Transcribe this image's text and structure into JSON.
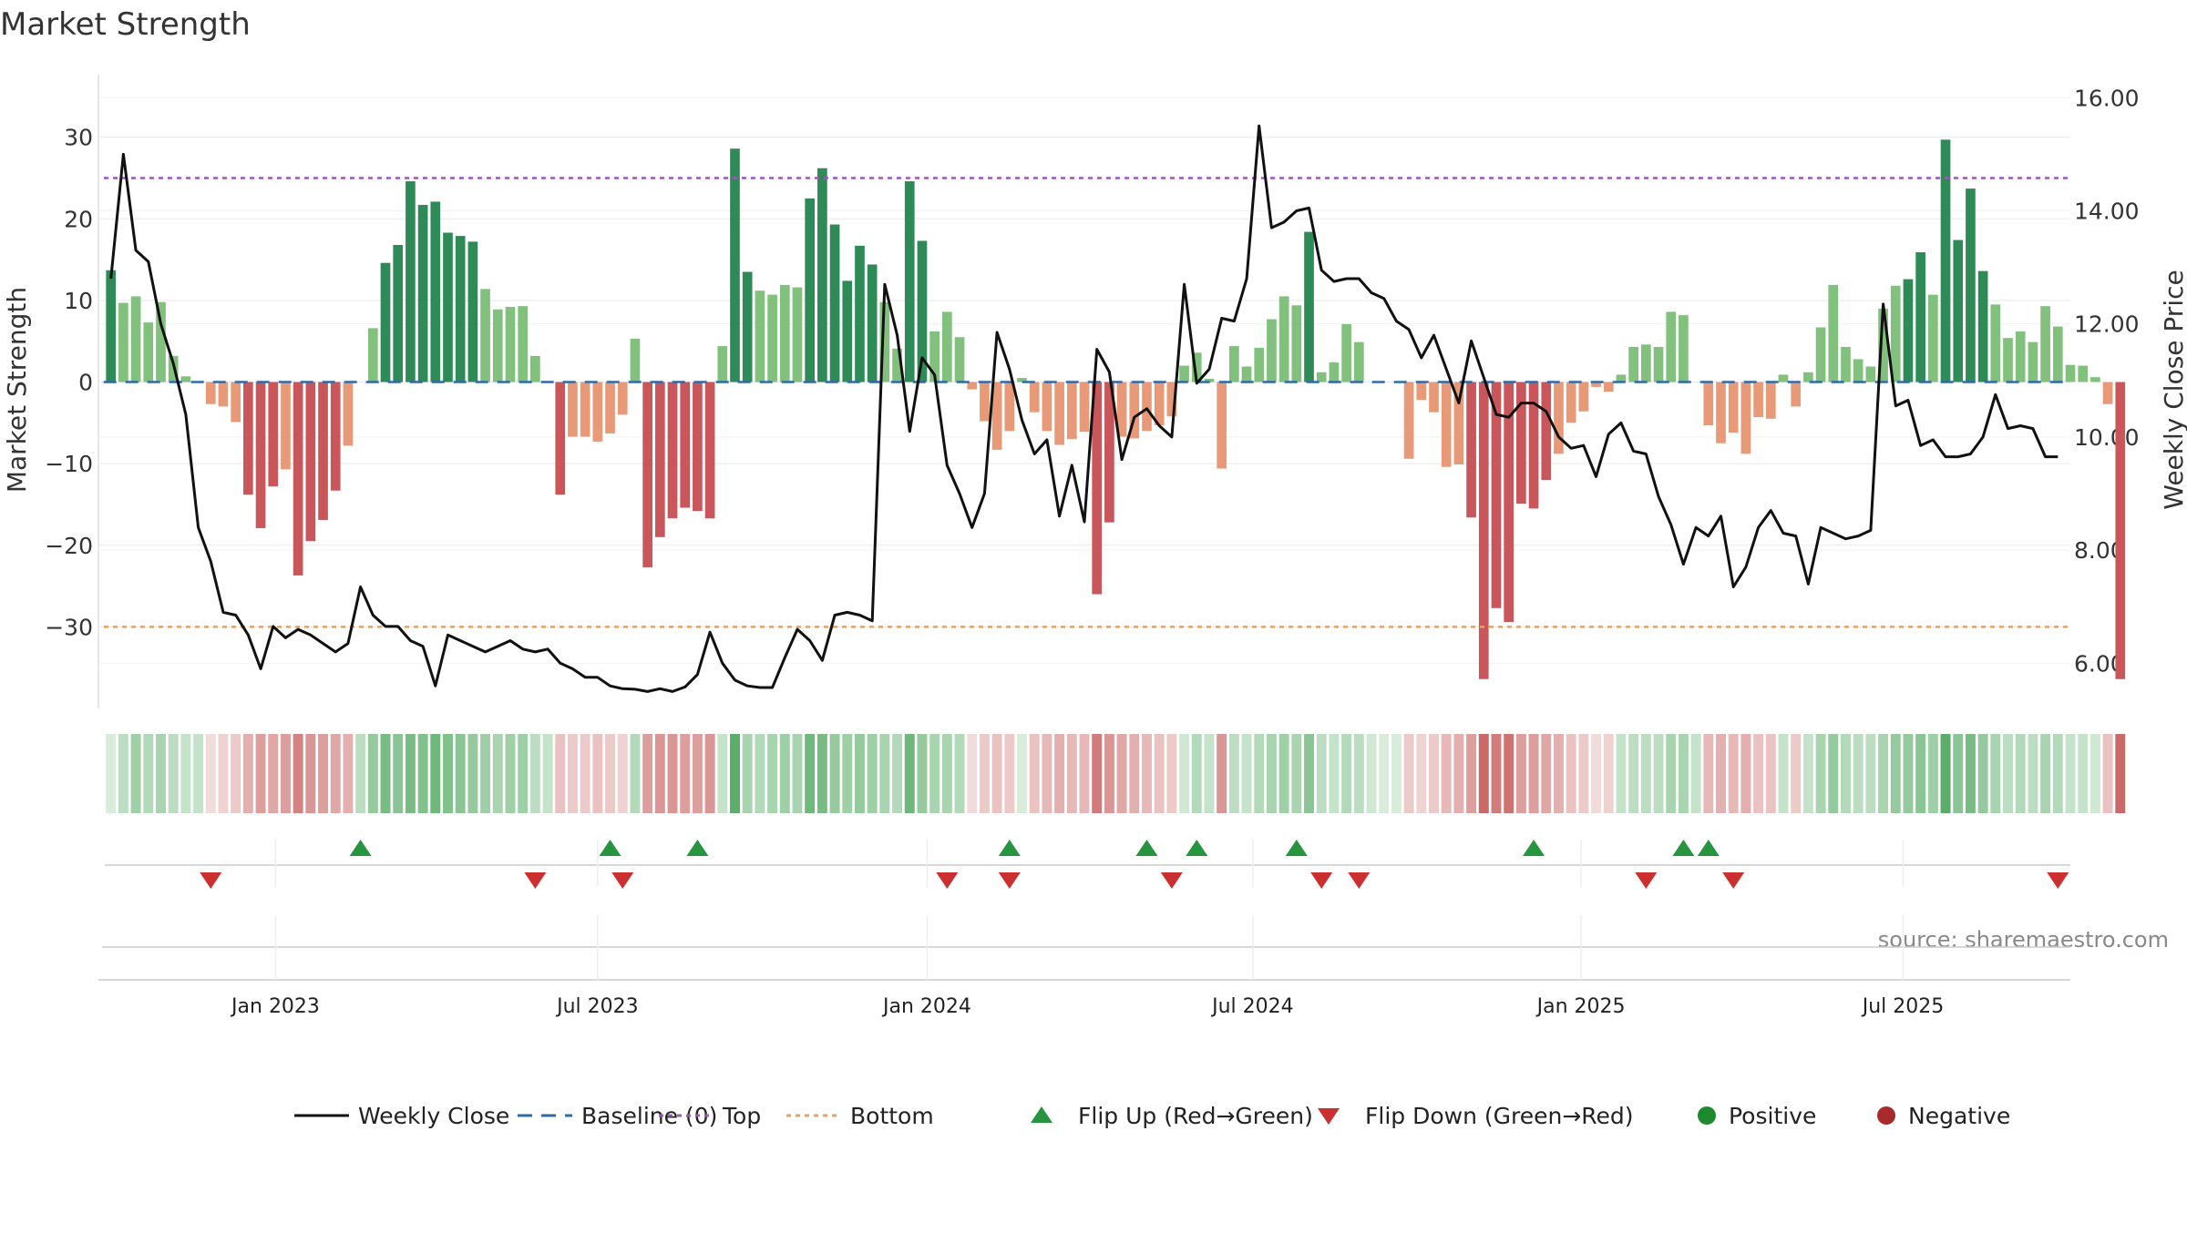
{
  "chart_data": {
    "type": "bar",
    "title": "Market Strength",
    "ylabel": "Market Strength",
    "y2label": "Weekly Close Price",
    "source": "source: sharemaestro.com",
    "ylim": [
      -40,
      39
    ],
    "y2lim": [
      5.2,
      16.6
    ],
    "yticks": [
      30,
      20,
      10,
      0,
      -10,
      -20,
      -30
    ],
    "ytick_labels": [
      "30",
      "20",
      "10",
      "0",
      "−10",
      "−20",
      "−30"
    ],
    "y2ticks": [
      16,
      14,
      12,
      10,
      8,
      6
    ],
    "y2tick_labels": [
      "16.00",
      "14.00",
      "12.00",
      "10.00",
      "8.00",
      "6.00"
    ],
    "xlim_week": [
      -1,
      157
    ],
    "xticks": [
      {
        "week": 13.2,
        "label": "Jan 2023"
      },
      {
        "week": 39.0,
        "label": "Jul 2023"
      },
      {
        "week": 65.4,
        "label": "Jan 2024"
      },
      {
        "week": 91.5,
        "label": "Jul 2024"
      },
      {
        "week": 117.8,
        "label": "Jan 2025"
      },
      {
        "week": 143.6,
        "label": "Jul 2025"
      }
    ],
    "reference_lines": {
      "top": 25,
      "bottom": -30,
      "baseline": 0
    },
    "strength": [
      13.7,
      9.7,
      10.5,
      7.3,
      9.8,
      3.2,
      0.7,
      0,
      -2.7,
      -3.0,
      -4.9,
      -13.8,
      -17.9,
      -12.8,
      -10.7,
      -23.7,
      -19.5,
      -16.9,
      -13.3,
      -7.8,
      0,
      6.6,
      14.6,
      16.8,
      24.6,
      21.7,
      22.1,
      18.3,
      17.9,
      17.2,
      11.4,
      8.9,
      9.2,
      9.3,
      3.2,
      0,
      -13.8,
      -6.7,
      -6.7,
      -7.3,
      -6.3,
      -4.0,
      5.3,
      -22.7,
      -19.0,
      -16.7,
      -15.4,
      -15.8,
      -16.7,
      4.4,
      28.6,
      13.5,
      11.2,
      10.7,
      11.9,
      11.6,
      22.5,
      26.2,
      19.3,
      12.4,
      16.7,
      14.4,
      9.8,
      4.1,
      24.6,
      17.3,
      6.2,
      8.6,
      5.5,
      -0.9,
      -4.8,
      -8.3,
      -6.0,
      0.5,
      -3.7,
      -6.0,
      -7.7,
      -7.0,
      -6.1,
      -26.0,
      -17.2,
      -6.7,
      -6.9,
      -6.0,
      -5.3,
      -4.2,
      2.0,
      3.6,
      0.4,
      -10.6,
      4.4,
      1.9,
      4.2,
      7.7,
      10.5,
      9.4,
      18.4,
      1.2,
      2.4,
      7.1,
      4.9,
      0,
      0,
      0,
      -9.4,
      -2.2,
      -3.7,
      -10.4,
      -10.1,
      -16.6,
      -36.4,
      -27.7,
      -29.4,
      -14.9,
      -15.5,
      -12.0,
      -8.8,
      -5.0,
      -3.6,
      -0.6,
      -1.2,
      0.9,
      4.3,
      4.6,
      4.3,
      8.6,
      8.2,
      0,
      -5.3,
      -7.5,
      -6.2,
      -8.8,
      -4.3,
      -4.5,
      0.9,
      -3.0,
      1.2,
      6.7,
      11.9,
      4.3,
      2.8,
      1.9,
      9.0,
      11.8,
      12.6,
      15.9,
      10.7,
      29.7,
      17.4,
      23.7,
      13.6,
      9.5,
      5.4,
      6.2,
      4.9,
      9.3,
      6.8,
      2.1,
      2.0,
      0.6,
      -2.7,
      -36.4
    ],
    "weekly_close": [
      12.8,
      15.0,
      13.3,
      13.1,
      12.0,
      11.3,
      10.4,
      8.4,
      7.8,
      6.9,
      6.85,
      6.5,
      5.9,
      6.65,
      6.45,
      6.6,
      6.5,
      6.35,
      6.2,
      6.35,
      7.35,
      6.85,
      6.65,
      6.65,
      6.4,
      6.3,
      5.6,
      6.5,
      6.4,
      6.3,
      6.2,
      6.3,
      6.4,
      6.25,
      6.2,
      6.25,
      6.0,
      5.9,
      5.75,
      5.75,
      5.6,
      5.55,
      5.54,
      5.5,
      5.55,
      5.5,
      5.58,
      5.8,
      6.55,
      6.0,
      5.7,
      5.6,
      5.57,
      5.57,
      6.1,
      6.6,
      6.4,
      6.05,
      6.85,
      6.9,
      6.85,
      6.75,
      12.7,
      11.8,
      10.1,
      11.4,
      11.1,
      9.5,
      9.0,
      8.4,
      9.0,
      11.85,
      11.2,
      10.3,
      9.7,
      9.95,
      8.6,
      9.5,
      8.5,
      11.55,
      11.15,
      9.6,
      10.35,
      10.5,
      10.2,
      10.0,
      12.7,
      10.95,
      11.2,
      12.1,
      12.05,
      12.8,
      15.5,
      13.7,
      13.8,
      14.0,
      14.05,
      12.95,
      12.75,
      12.8,
      12.8,
      12.55,
      12.45,
      12.05,
      11.9,
      11.4,
      11.8,
      11.2,
      10.6,
      11.7,
      11.05,
      10.4,
      10.35,
      10.6,
      10.6,
      10.45,
      10.0,
      9.8,
      9.85,
      9.3,
      10.05,
      10.25,
      9.75,
      9.7,
      8.95,
      8.45,
      7.75,
      8.4,
      8.25,
      8.6,
      7.35,
      7.7,
      8.4,
      8.7,
      8.3,
      8.25,
      7.4,
      8.4,
      8.3,
      8.2,
      8.25,
      8.35,
      12.35,
      10.55,
      10.65,
      9.85,
      9.95,
      9.65,
      9.65,
      9.7,
      10.0,
      10.75,
      10.15,
      10.2,
      10.15,
      9.65,
      9.65
    ],
    "heat_strip": [
      0.2,
      0.35,
      0.5,
      0.4,
      0.45,
      0.35,
      0.3,
      0.3,
      0.2,
      0.25,
      0.3,
      0.45,
      0.55,
      0.5,
      0.55,
      0.7,
      0.6,
      0.55,
      0.5,
      0.45,
      0.35,
      0.55,
      0.7,
      0.6,
      0.7,
      0.65,
      0.75,
      0.65,
      0.6,
      0.55,
      0.5,
      0.45,
      0.5,
      0.5,
      0.35,
      0.3,
      0.35,
      0.3,
      0.3,
      0.35,
      0.3,
      0.25,
      0.4,
      0.55,
      0.6,
      0.6,
      0.55,
      0.55,
      0.6,
      0.3,
      0.85,
      0.45,
      0.4,
      0.45,
      0.5,
      0.45,
      0.75,
      0.7,
      0.55,
      0.5,
      0.55,
      0.5,
      0.45,
      0.4,
      0.75,
      0.55,
      0.45,
      0.45,
      0.4,
      0.2,
      0.3,
      0.35,
      0.3,
      0.2,
      0.35,
      0.4,
      0.45,
      0.4,
      0.4,
      0.75,
      0.6,
      0.5,
      0.45,
      0.4,
      0.35,
      0.3,
      0.25,
      0.4,
      0.3,
      0.6,
      0.35,
      0.3,
      0.4,
      0.45,
      0.5,
      0.45,
      0.6,
      0.35,
      0.3,
      0.4,
      0.35,
      0.25,
      0.2,
      0.2,
      0.3,
      0.25,
      0.3,
      0.4,
      0.45,
      0.55,
      0.85,
      0.75,
      0.8,
      0.55,
      0.55,
      0.5,
      0.45,
      0.35,
      0.3,
      0.2,
      0.25,
      0.3,
      0.35,
      0.35,
      0.35,
      0.45,
      0.45,
      0.3,
      0.4,
      0.45,
      0.4,
      0.45,
      0.35,
      0.35,
      0.3,
      0.3,
      0.3,
      0.45,
      0.55,
      0.4,
      0.35,
      0.35,
      0.45,
      0.55,
      0.55,
      0.6,
      0.5,
      0.85,
      0.6,
      0.7,
      0.55,
      0.45,
      0.35,
      0.4,
      0.35,
      0.45,
      0.4,
      0.3,
      0.3,
      0.25,
      0.35,
      0.85
    ],
    "flip_up_weeks": [
      20,
      40,
      47,
      72,
      83,
      87,
      95,
      114,
      126,
      128
    ],
    "flip_down_weeks": [
      8,
      34,
      41,
      67,
      72,
      85,
      97,
      100,
      123,
      130,
      156
    ],
    "legend": [
      {
        "label": "Weekly Close",
        "marker": "line-solid",
        "color": "#111111"
      },
      {
        "label": "Baseline (0)",
        "marker": "line-dashed",
        "color": "#2e6aa8"
      },
      {
        "label": "Top",
        "marker": "line-dotted",
        "color": "#9b59b6"
      },
      {
        "label": "Bottom",
        "marker": "line-dotted",
        "color": "#e8a25f"
      },
      {
        "label": "Flip Up (Red→Green)",
        "marker": "triangle-up",
        "color": "#27943f"
      },
      {
        "label": "Flip Down (Green→Red)",
        "marker": "triangle-down",
        "color": "#cc2f2f"
      },
      {
        "label": "Positive",
        "marker": "circle",
        "color": "#1e8a2e"
      },
      {
        "label": "Negative",
        "marker": "circle",
        "color": "#a82a2a"
      }
    ],
    "colors": {
      "bar_strong_green": "#2e8b57",
      "bar_light_green": "#82c07e",
      "bar_strong_red": "#c9565a",
      "bar_light_red": "#e89a78",
      "strip_green": "#3f9f4f",
      "strip_red": "#c0504d",
      "close_line": "#111111",
      "top_line": "#9b59b6",
      "bottom_line": "#e8a25f",
      "baseline": "#2e6aa8",
      "flip_up": "#27943f",
      "flip_down": "#cc2f2f"
    }
  }
}
